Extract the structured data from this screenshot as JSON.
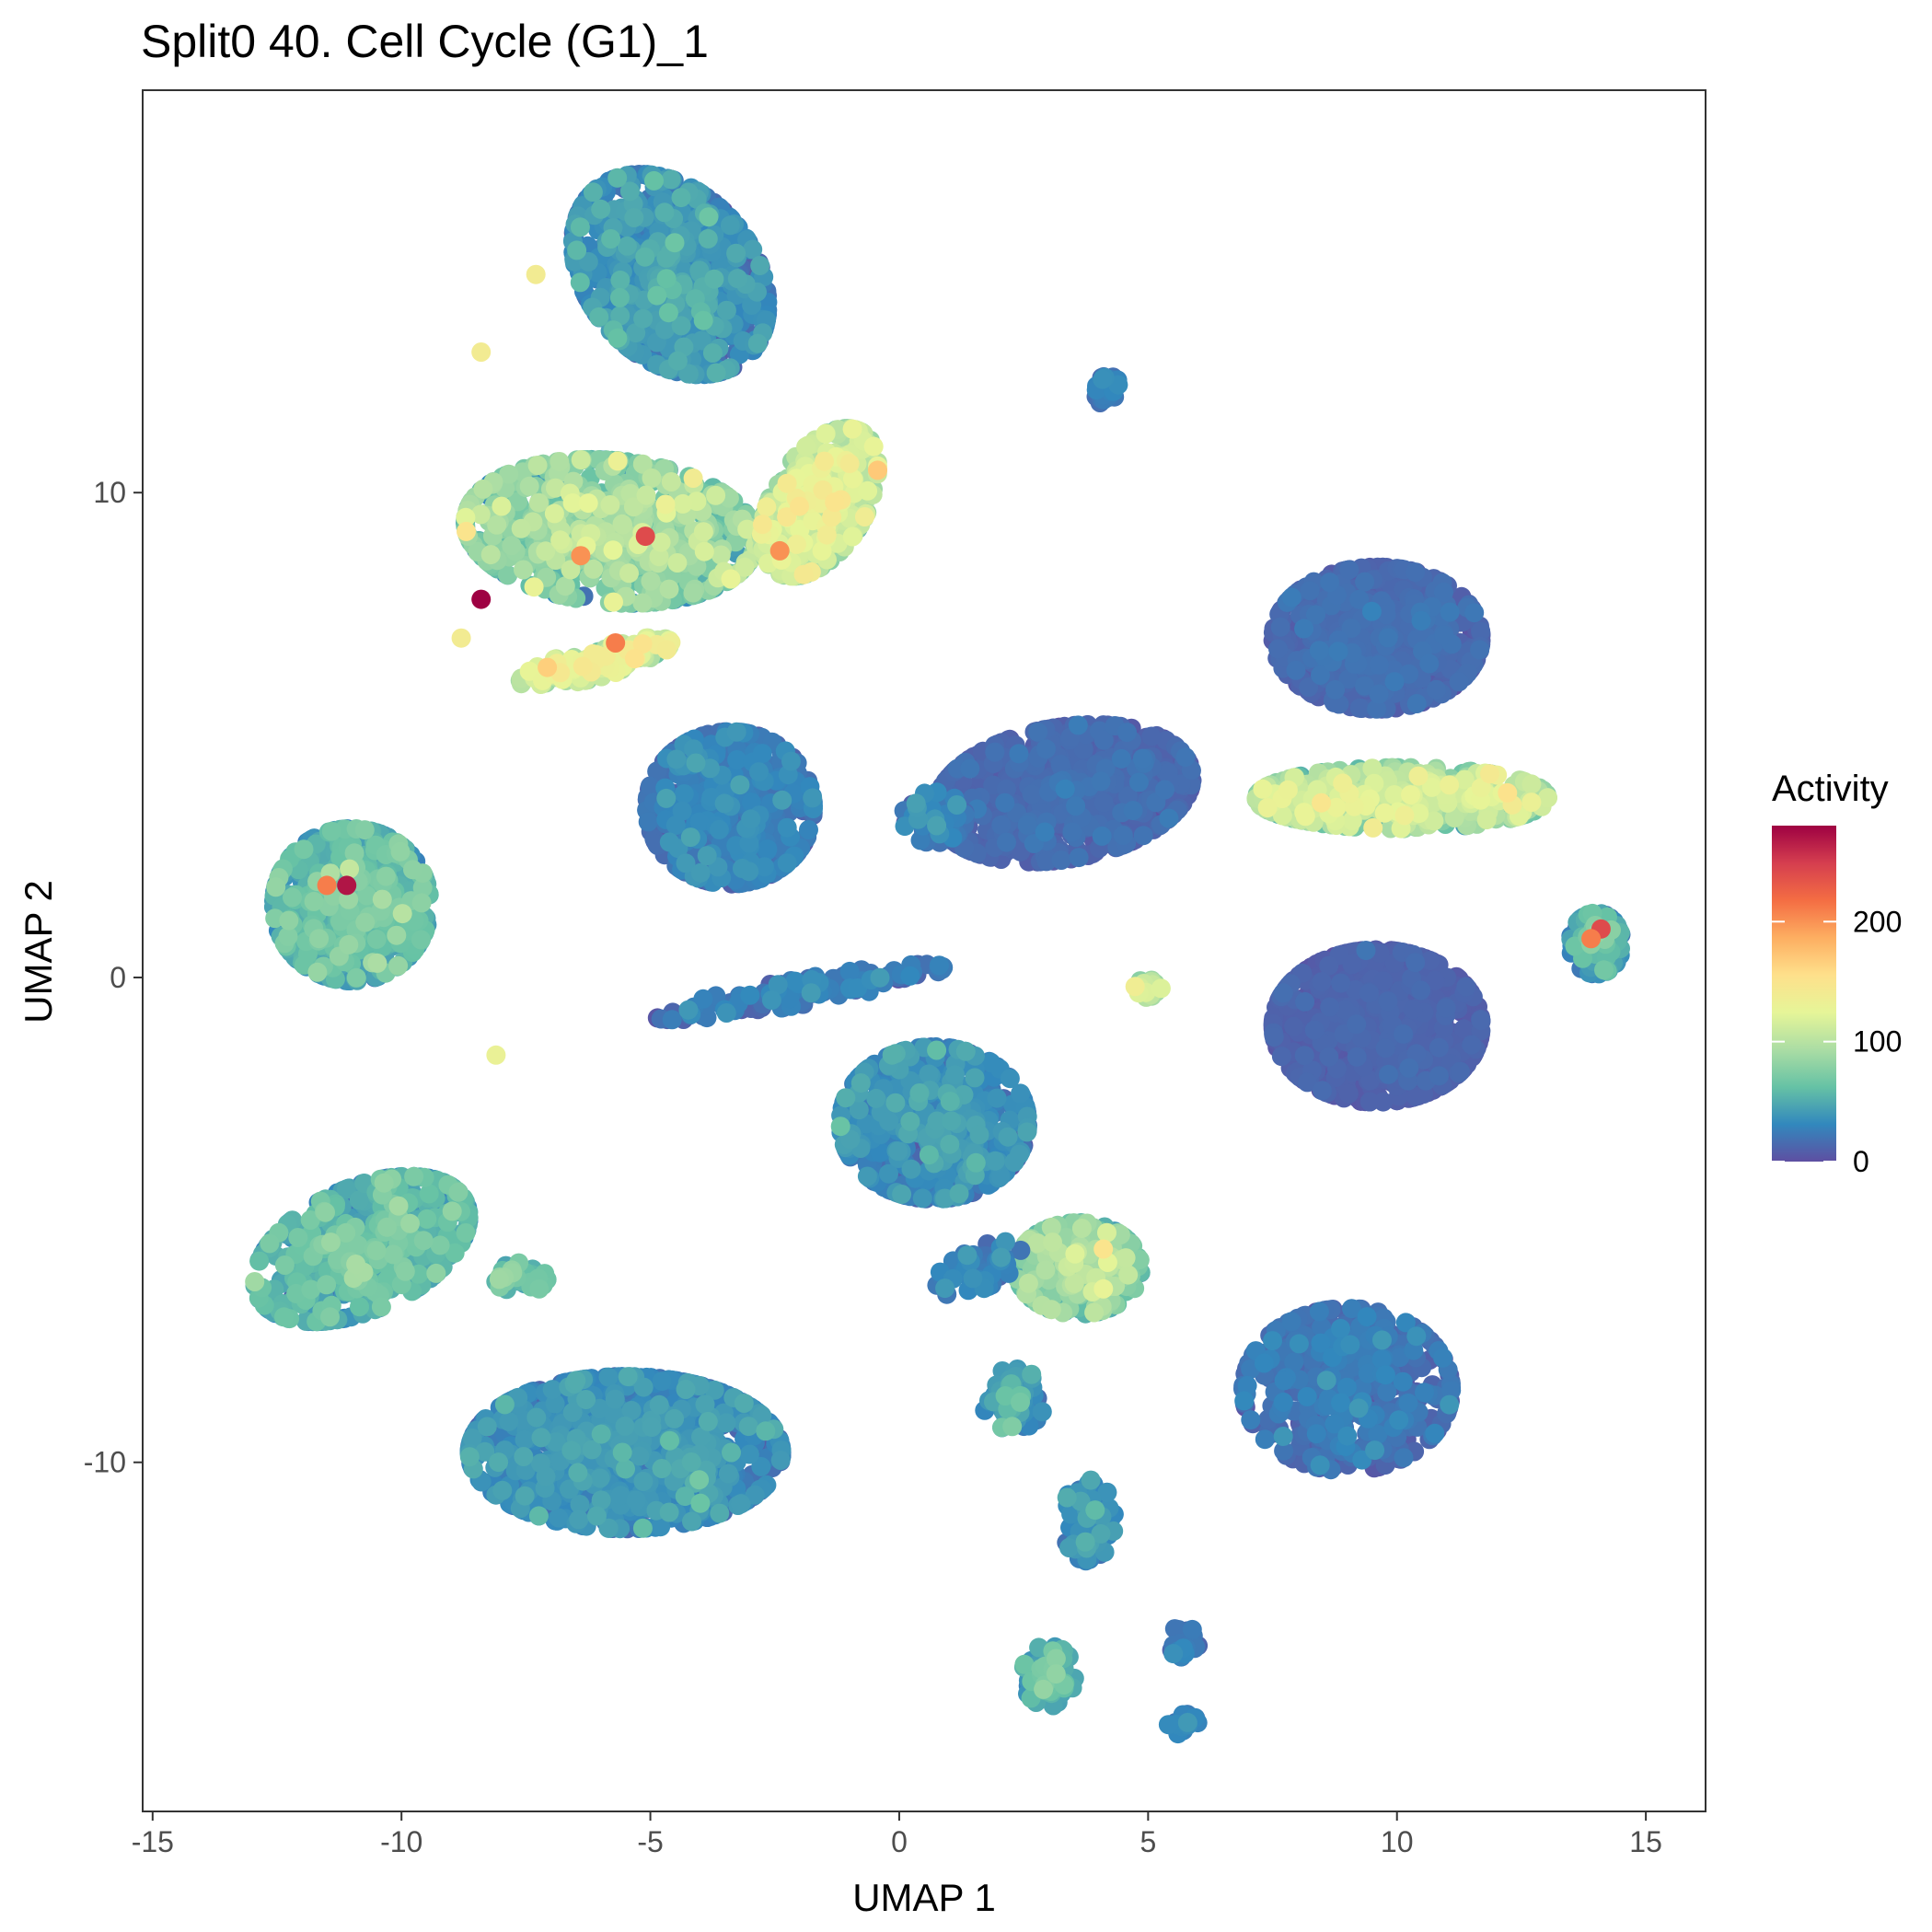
{
  "chart_data": {
    "type": "scatter",
    "title": "Split0 40. Cell Cycle (G1)_1",
    "xlabel": "UMAP 1",
    "ylabel": "UMAP 2",
    "xlim": [
      -15.2,
      16.2
    ],
    "ylim": [
      -17.2,
      18.3
    ],
    "x_ticks": [
      -15,
      -10,
      -5,
      0,
      5,
      10,
      15
    ],
    "x_tick_labels": [
      "-15",
      "-10",
      "-5",
      "0",
      "5",
      "10",
      "15"
    ],
    "y_ticks": [
      -10,
      0,
      10
    ],
    "y_tick_labels": [
      "-10",
      "0",
      "10"
    ],
    "grid": false,
    "colorbar": {
      "title": "Activity",
      "min": 0,
      "max": 280,
      "ticks": [
        0,
        100,
        200
      ],
      "tick_labels": [
        "0",
        "100",
        "200"
      ],
      "colors": [
        "#5E4FA2",
        "#3288BD",
        "#66C2A5",
        "#ABDDA4",
        "#E6F598",
        "#FEE08B",
        "#FDAE61",
        "#F46D43",
        "#D53E4F",
        "#9E0142"
      ],
      "placement": "right"
    },
    "clusters": [
      {
        "cx": -4.6,
        "cy": 14.5,
        "sx": 1.6,
        "sy": 2.2,
        "angle": 40,
        "n": 900,
        "mean": 30,
        "var": 25
      },
      {
        "cx": -5.8,
        "cy": 9.2,
        "sx": 2.8,
        "sy": 1.4,
        "angle": -5,
        "n": 900,
        "mean": 70,
        "var": 45
      },
      {
        "cx": -1.6,
        "cy": 9.8,
        "sx": 0.9,
        "sy": 1.6,
        "angle": -30,
        "n": 400,
        "mean": 100,
        "var": 40
      },
      {
        "cx": -3.4,
        "cy": 3.5,
        "sx": 1.6,
        "sy": 1.5,
        "angle": 0,
        "n": 600,
        "mean": 22,
        "var": 18
      },
      {
        "cx": 3.3,
        "cy": 3.8,
        "sx": 2.5,
        "sy": 1.3,
        "angle": 10,
        "n": 700,
        "mean": 12,
        "var": 10
      },
      {
        "cx": 9.6,
        "cy": 7.0,
        "sx": 2.0,
        "sy": 1.4,
        "angle": 0,
        "n": 700,
        "mean": 12,
        "var": 10
      },
      {
        "cx": 10.1,
        "cy": 3.7,
        "sx": 2.8,
        "sy": 0.6,
        "angle": 0,
        "n": 500,
        "mean": 90,
        "var": 40
      },
      {
        "cx": 9.6,
        "cy": -1.0,
        "sx": 2.0,
        "sy": 1.5,
        "angle": 0,
        "n": 900,
        "mean": 8,
        "var": 8
      },
      {
        "cx": 14.0,
        "cy": 0.7,
        "sx": 0.5,
        "sy": 0.6,
        "angle": 0,
        "n": 150,
        "mean": 40,
        "var": 30
      },
      {
        "cx": -11.0,
        "cy": 1.5,
        "sx": 1.5,
        "sy": 1.5,
        "angle": 0,
        "n": 700,
        "mean": 50,
        "var": 30
      },
      {
        "cx": -10.8,
        "cy": -5.6,
        "sx": 2.2,
        "sy": 1.2,
        "angle": 25,
        "n": 600,
        "mean": 50,
        "var": 30
      },
      {
        "cx": -5.5,
        "cy": -9.8,
        "sx": 3.0,
        "sy": 1.5,
        "angle": 0,
        "n": 1100,
        "mean": 30,
        "var": 20
      },
      {
        "cx": 0.7,
        "cy": -3.0,
        "sx": 1.8,
        "sy": 1.5,
        "angle": 0,
        "n": 600,
        "mean": 28,
        "var": 22
      },
      {
        "cx": 3.6,
        "cy": -6.0,
        "sx": 1.2,
        "sy": 0.9,
        "angle": 0,
        "n": 300,
        "mean": 70,
        "var": 40
      },
      {
        "cx": 9.0,
        "cy": -8.5,
        "sx": 2.0,
        "sy": 1.6,
        "angle": 0,
        "n": 500,
        "mean": 18,
        "var": 15
      },
      {
        "cx": -2.0,
        "cy": -0.3,
        "sx": 2.8,
        "sy": 0.25,
        "angle": 10,
        "n": 150,
        "mean": 20,
        "var": 18
      },
      {
        "cx": 0.7,
        "cy": 3.3,
        "sx": 0.6,
        "sy": 0.5,
        "angle": 0,
        "n": 100,
        "mean": 20,
        "var": 15
      },
      {
        "cx": 4.2,
        "cy": 12.1,
        "sx": 0.25,
        "sy": 0.3,
        "angle": 0,
        "n": 30,
        "mean": 25,
        "var": 15
      },
      {
        "cx": 5.0,
        "cy": -0.2,
        "sx": 0.25,
        "sy": 0.2,
        "angle": 0,
        "n": 25,
        "mean": 100,
        "var": 30
      },
      {
        "cx": 2.3,
        "cy": -8.7,
        "sx": 0.6,
        "sy": 0.6,
        "angle": 0,
        "n": 60,
        "mean": 40,
        "var": 25
      },
      {
        "cx": 3.8,
        "cy": -11.2,
        "sx": 0.5,
        "sy": 0.8,
        "angle": 0,
        "n": 80,
        "mean": 30,
        "var": 20
      },
      {
        "cx": 3.0,
        "cy": -14.4,
        "sx": 0.5,
        "sy": 0.6,
        "angle": 0,
        "n": 80,
        "mean": 50,
        "var": 30
      },
      {
        "cx": 5.7,
        "cy": -13.7,
        "sx": 0.3,
        "sy": 0.3,
        "angle": 0,
        "n": 30,
        "mean": 20,
        "var": 15
      },
      {
        "cx": 5.7,
        "cy": -15.4,
        "sx": 0.3,
        "sy": 0.2,
        "angle": 0,
        "n": 25,
        "mean": 25,
        "var": 15
      },
      {
        "cx": -6.1,
        "cy": 6.5,
        "sx": 1.5,
        "sy": 0.3,
        "angle": 15,
        "n": 150,
        "mean": 110,
        "var": 35
      },
      {
        "cx": -7.6,
        "cy": -6.2,
        "sx": 0.5,
        "sy": 0.3,
        "angle": 0,
        "n": 40,
        "mean": 60,
        "var": 25
      },
      {
        "cx": 1.6,
        "cy": -6.0,
        "sx": 0.9,
        "sy": 0.4,
        "angle": 25,
        "n": 60,
        "mean": 25,
        "var": 20
      }
    ],
    "highlighted_points": [
      {
        "x": -8.4,
        "y": 7.8,
        "value": 280
      },
      {
        "x": -11.1,
        "y": 1.9,
        "value": 270
      },
      {
        "x": -11.5,
        "y": 1.9,
        "value": 210
      },
      {
        "x": -5.1,
        "y": 9.1,
        "value": 240
      },
      {
        "x": -6.4,
        "y": 8.7,
        "value": 200
      },
      {
        "x": -2.4,
        "y": 8.8,
        "value": 200
      },
      {
        "x": -5.7,
        "y": 6.9,
        "value": 210
      },
      {
        "x": 14.1,
        "y": 1.0,
        "value": 240
      },
      {
        "x": 13.9,
        "y": 0.8,
        "value": 210
      },
      {
        "x": 4.1,
        "y": -5.6,
        "value": 150
      },
      {
        "x": -8.7,
        "y": 9.2,
        "value": 150
      },
      {
        "x": -1.3,
        "y": 9.8,
        "value": 150
      },
      {
        "x": -8.8,
        "y": 7.0,
        "value": 140
      },
      {
        "x": -7.3,
        "y": 14.5,
        "value": 140
      },
      {
        "x": -8.4,
        "y": 12.9,
        "value": 140
      },
      {
        "x": 7.4,
        "y": 3.5,
        "value": 130
      },
      {
        "x": -8.1,
        "y": -1.6,
        "value": 130
      }
    ]
  }
}
